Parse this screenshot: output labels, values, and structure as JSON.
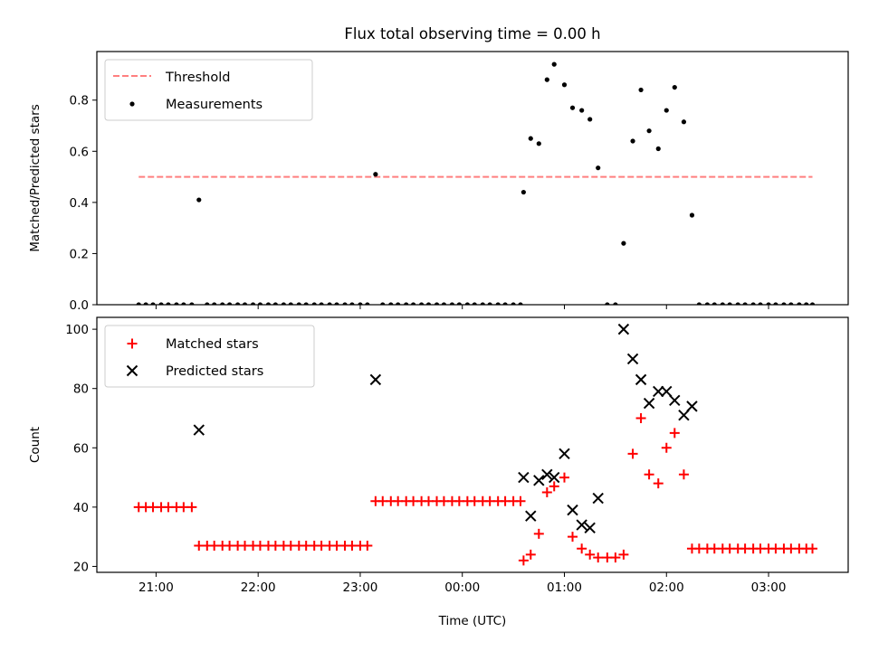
{
  "title": "Flux total observing time = 0.00 h",
  "chart_data": [
    {
      "type": "scatter",
      "ylabel": "Matched/Predicted stars",
      "xlim": [
        20.42,
        27.78
      ],
      "ylim": [
        0,
        0.99
      ],
      "x_ticks": [
        21,
        22,
        23,
        24,
        25,
        26,
        27
      ],
      "y_ticks": [
        0.0,
        0.2,
        0.4,
        0.6,
        0.8
      ],
      "y_tick_labels": [
        "0.0",
        "0.2",
        "0.4",
        "0.6",
        "0.8"
      ],
      "legend": {
        "position": "top-left",
        "entries": [
          "Threshold",
          "Measurements"
        ]
      },
      "threshold": {
        "name": "Threshold",
        "value": 0.5,
        "x_range": [
          20.83,
          27.43
        ],
        "color": "#ff7f7f"
      },
      "measurements": {
        "name": "Measurements",
        "color": "#000000",
        "x": [
          20.83,
          20.9,
          20.97,
          21.05,
          21.12,
          21.2,
          21.27,
          21.35,
          21.42,
          21.5,
          21.57,
          21.65,
          21.72,
          21.8,
          21.87,
          21.95,
          22.02,
          22.1,
          22.17,
          22.25,
          22.32,
          22.4,
          22.47,
          22.55,
          22.62,
          22.7,
          22.77,
          22.85,
          22.92,
          23.0,
          23.07,
          23.15,
          23.22,
          23.3,
          23.37,
          23.45,
          23.52,
          23.6,
          23.67,
          23.75,
          23.82,
          23.9,
          23.97,
          24.05,
          24.12,
          24.2,
          24.27,
          24.35,
          24.42,
          24.5,
          24.57,
          24.6,
          24.67,
          24.75,
          24.83,
          24.9,
          25.0,
          25.08,
          25.17,
          25.25,
          25.33,
          25.42,
          25.5,
          25.58,
          25.67,
          25.75,
          25.83,
          25.92,
          26.0,
          26.08,
          26.17,
          26.25,
          26.32,
          26.4,
          26.47,
          26.55,
          26.62,
          26.7,
          26.77,
          26.85,
          26.92,
          27.0,
          27.07,
          27.15,
          27.22,
          27.3,
          27.37,
          27.43
        ],
        "y": [
          0,
          0,
          0,
          0,
          0,
          0,
          0,
          0,
          0.41,
          0,
          0,
          0,
          0,
          0,
          0,
          0,
          0,
          0,
          0,
          0,
          0,
          0,
          0,
          0,
          0,
          0,
          0,
          0,
          0,
          0,
          0,
          0.51,
          0,
          0,
          0,
          0,
          0,
          0,
          0,
          0,
          0,
          0,
          0,
          0,
          0,
          0,
          0,
          0,
          0,
          0,
          0,
          0.44,
          0.65,
          0.63,
          0.88,
          0.94,
          0.86,
          0.77,
          0.76,
          0.725,
          0.535,
          0,
          0,
          0.24,
          0.64,
          0.84,
          0.68,
          0.61,
          0.76,
          0.85,
          0.715,
          0.35,
          0,
          0,
          0,
          0,
          0,
          0,
          0,
          0,
          0,
          0,
          0,
          0,
          0,
          0,
          0,
          0
        ]
      }
    },
    {
      "type": "scatter",
      "xlabel": "Time (UTC)",
      "ylabel": "Count",
      "xlim": [
        20.42,
        27.78
      ],
      "ylim": [
        18,
        104
      ],
      "x_ticks": [
        21,
        22,
        23,
        24,
        25,
        26,
        27
      ],
      "x_tick_labels": [
        "21:00",
        "22:00",
        "23:00",
        "00:00",
        "01:00",
        "02:00",
        "03:00"
      ],
      "y_ticks": [
        20,
        40,
        60,
        80,
        100
      ],
      "y_tick_labels": [
        "20",
        "40",
        "60",
        "80",
        "100"
      ],
      "legend": {
        "position": "top-left",
        "entries": [
          "Matched stars",
          "Predicted stars"
        ]
      },
      "series": [
        {
          "name": "Matched stars",
          "marker": "plus",
          "color": "#ff0000",
          "x": [
            20.83,
            20.9,
            20.97,
            21.05,
            21.12,
            21.2,
            21.27,
            21.35,
            21.42,
            21.5,
            21.57,
            21.65,
            21.72,
            21.8,
            21.87,
            21.95,
            22.02,
            22.1,
            22.17,
            22.25,
            22.32,
            22.4,
            22.47,
            22.55,
            22.62,
            22.7,
            22.77,
            22.85,
            22.92,
            23.0,
            23.07,
            23.15,
            23.22,
            23.3,
            23.37,
            23.45,
            23.52,
            23.6,
            23.67,
            23.75,
            23.82,
            23.9,
            23.97,
            24.05,
            24.12,
            24.2,
            24.27,
            24.35,
            24.42,
            24.5,
            24.57,
            24.6,
            24.67,
            24.75,
            24.83,
            24.9,
            25.0,
            25.08,
            25.17,
            25.25,
            25.33,
            25.42,
            25.5,
            25.58,
            25.67,
            25.75,
            25.83,
            25.92,
            26.0,
            26.08,
            26.17,
            26.25,
            26.32,
            26.4,
            26.47,
            26.55,
            26.62,
            26.7,
            26.77,
            26.85,
            26.92,
            27.0,
            27.07,
            27.15,
            27.22,
            27.3,
            27.37,
            27.43
          ],
          "y": [
            40,
            40,
            40,
            40,
            40,
            40,
            40,
            40,
            27,
            27,
            27,
            27,
            27,
            27,
            27,
            27,
            27,
            27,
            27,
            27,
            27,
            27,
            27,
            27,
            27,
            27,
            27,
            27,
            27,
            27,
            27,
            42,
            42,
            42,
            42,
            42,
            42,
            42,
            42,
            42,
            42,
            42,
            42,
            42,
            42,
            42,
            42,
            42,
            42,
            42,
            42,
            22,
            24,
            31,
            45,
            47,
            50,
            30,
            26,
            24,
            23,
            23,
            23,
            24,
            58,
            70,
            51,
            48,
            60,
            65,
            51,
            26,
            26,
            26,
            26,
            26,
            26,
            26,
            26,
            26,
            26,
            26,
            26,
            26,
            26,
            26,
            26,
            26
          ]
        },
        {
          "name": "Predicted stars",
          "marker": "x",
          "color": "#000000",
          "x": [
            21.42,
            23.15,
            24.6,
            24.67,
            24.75,
            24.83,
            24.9,
            25.0,
            25.08,
            25.17,
            25.25,
            25.33,
            25.58,
            25.67,
            25.75,
            25.83,
            25.92,
            26.0,
            26.08,
            26.17,
            26.25
          ],
          "y": [
            66,
            83,
            50,
            37,
            49,
            51,
            50,
            58,
            39,
            34,
            33,
            43,
            100,
            90,
            83,
            75,
            79,
            79,
            76,
            71,
            74
          ]
        }
      ]
    }
  ]
}
